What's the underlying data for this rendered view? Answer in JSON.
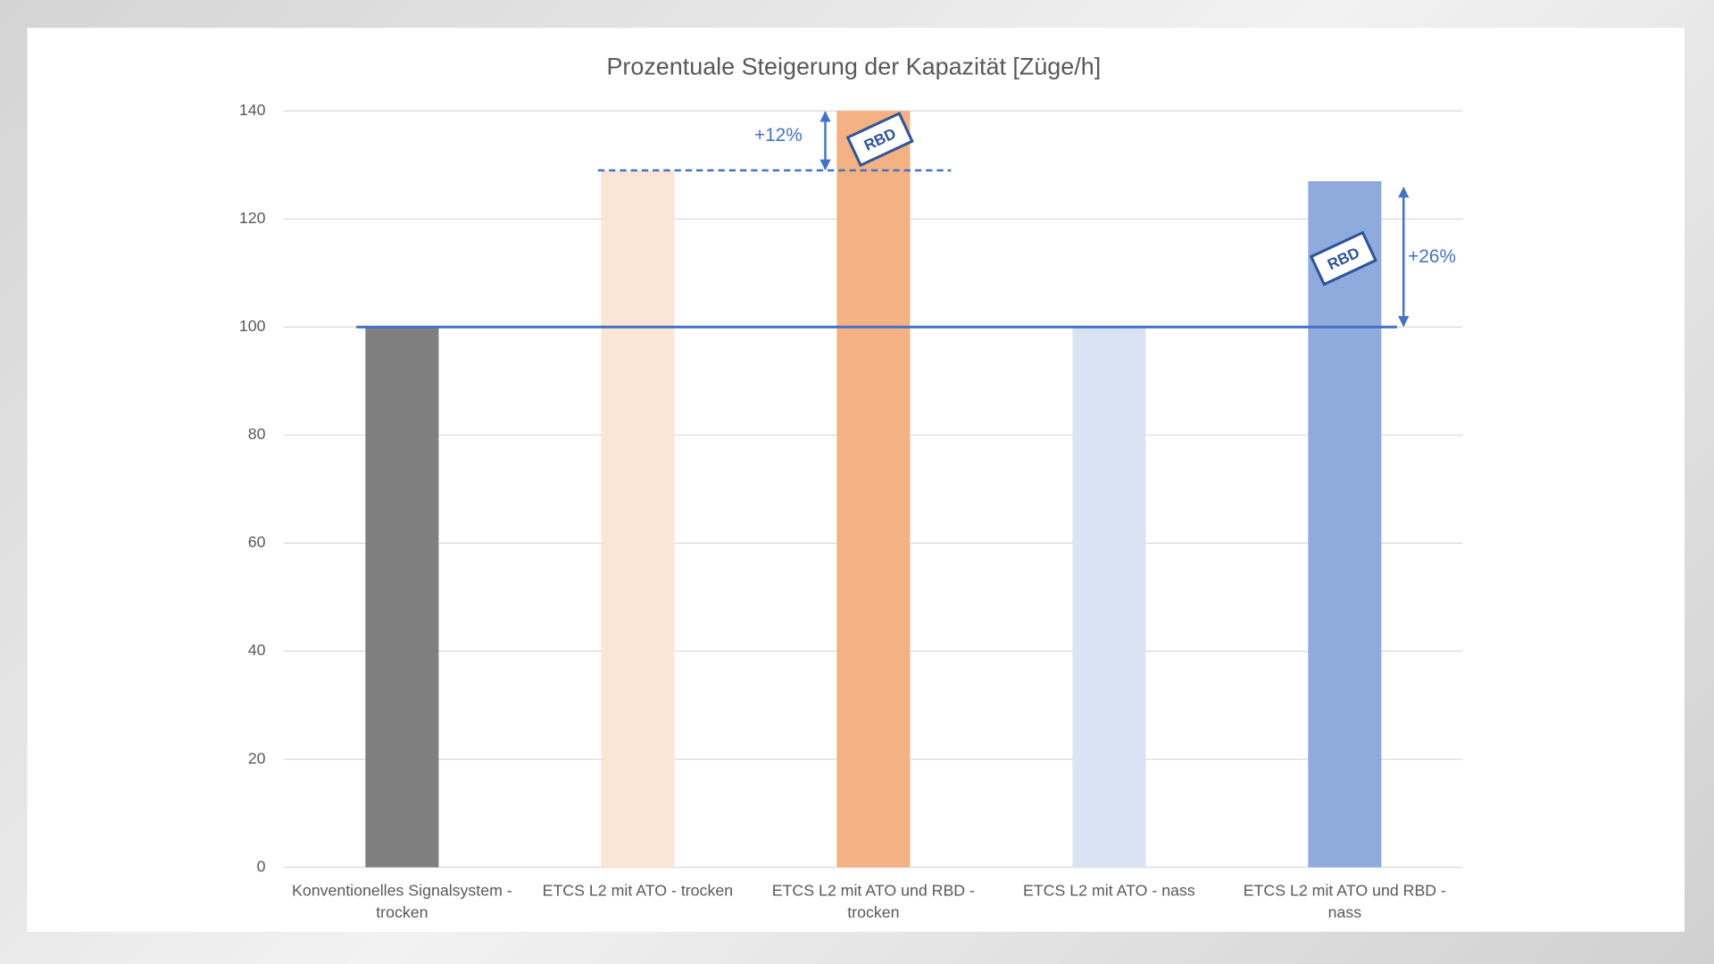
{
  "chart_data": {
    "type": "bar",
    "title": "Prozentuale Steigerung der Kapazität [Züge/h]",
    "categories": [
      "Konventionelles Signalsystem - trocken",
      "ETCS L2 mit ATO - trocken",
      "ETCS L2 mit ATO   und RBD - trocken",
      "ETCS L2 mit ATO - nass",
      "ETCS L2 mit ATO  und RBD - nass"
    ],
    "values": [
      100,
      129,
      140,
      100,
      127
    ],
    "colors": [
      "#7f7f7f",
      "#fbe5d6",
      "#f4b183",
      "#dae3f3",
      "#8faadc"
    ],
    "ylim": [
      0,
      140
    ],
    "yticks": [
      0,
      20,
      40,
      60,
      80,
      100,
      120,
      140
    ],
    "grid": true,
    "increase_labels": [
      "+12%",
      "+26%"
    ],
    "badge_label": "RBD",
    "annotation_color": "#4472c4"
  }
}
